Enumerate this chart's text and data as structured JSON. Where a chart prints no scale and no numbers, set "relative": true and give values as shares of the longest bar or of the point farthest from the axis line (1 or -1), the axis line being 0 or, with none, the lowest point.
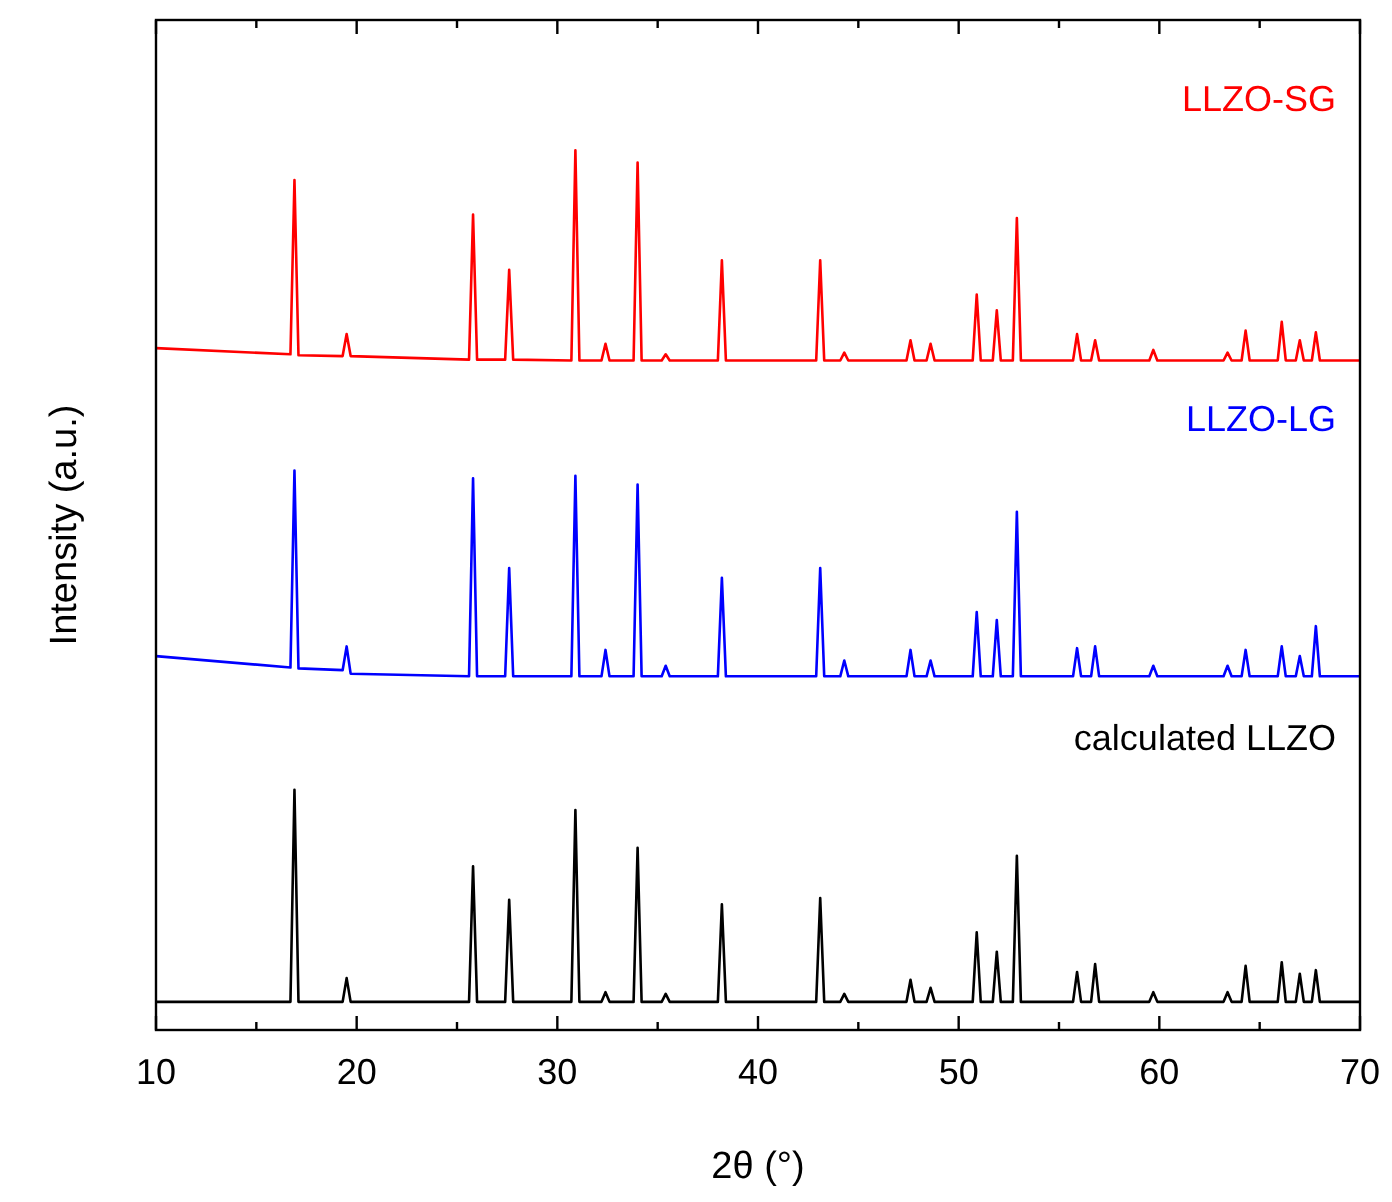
{
  "chart_data": {
    "type": "line",
    "relative": true,
    "xlabel": "2θ (°)",
    "ylabel": "Intensity (a.u.)",
    "xlim": [
      10,
      70
    ],
    "xticks": [
      10,
      {
        "value": 15,
        "label": null
      },
      20,
      {
        "value": 25,
        "label": null
      },
      30,
      {
        "value": 35,
        "label": null
      },
      40,
      {
        "value": 45,
        "label": null
      },
      50,
      {
        "value": 55,
        "label": null
      },
      60,
      {
        "value": 65,
        "label": null
      },
      70
    ],
    "tick_labels": "x",
    "grid": false,
    "marker": "none",
    "line_style": "solid",
    "x": [
      10,
      16.7,
      16.9,
      17.1,
      19.3,
      19.5,
      19.7,
      25.6,
      25.8,
      26.0,
      27.4,
      27.6,
      27.8,
      30.7,
      30.9,
      31.1,
      32.2,
      32.4,
      32.6,
      33.8,
      34.0,
      34.2,
      35.2,
      35.4,
      35.6,
      38.0,
      38.2,
      38.4,
      42.9,
      43.1,
      43.3,
      44.1,
      44.3,
      44.5,
      47.4,
      47.6,
      47.8,
      48.4,
      48.6,
      48.8,
      50.7,
      50.9,
      51.1,
      51.7,
      51.9,
      52.1,
      52.7,
      52.9,
      53.1,
      55.7,
      55.9,
      56.1,
      56.6,
      56.8,
      57.0,
      59.5,
      59.7,
      59.9,
      63.2,
      63.4,
      63.6,
      64.1,
      64.3,
      64.5,
      65.9,
      66.1,
      66.3,
      66.8,
      67.0,
      67.2,
      67.6,
      67.8,
      68.0,
      70
    ],
    "series": [
      {
        "name": "LLZO-SG",
        "color": "#ff0000",
        "values": [
          0.775,
          0.768,
          0.966,
          0.767,
          0.766,
          0.791,
          0.766,
          0.762,
          0.927,
          0.762,
          0.762,
          0.864,
          0.762,
          0.761,
          1.0,
          0.761,
          0.761,
          0.78,
          0.761,
          0.761,
          0.986,
          0.761,
          0.761,
          0.768,
          0.761,
          0.761,
          0.875,
          0.761,
          0.761,
          0.875,
          0.761,
          0.761,
          0.77,
          0.761,
          0.761,
          0.784,
          0.761,
          0.761,
          0.78,
          0.761,
          0.761,
          0.836,
          0.761,
          0.761,
          0.818,
          0.761,
          0.761,
          0.923,
          0.761,
          0.761,
          0.791,
          0.761,
          0.761,
          0.784,
          0.761,
          0.761,
          0.773,
          0.761,
          0.761,
          0.77,
          0.761,
          0.761,
          0.795,
          0.761,
          0.761,
          0.805,
          0.761,
          0.761,
          0.784,
          0.761,
          0.761,
          0.793,
          0.761,
          0.761
        ]
      },
      {
        "name": "LLZO-LG",
        "color": "#0000ff",
        "values": [
          0.425,
          0.412,
          0.636,
          0.411,
          0.409,
          0.436,
          0.405,
          0.402,
          0.627,
          0.402,
          0.402,
          0.525,
          0.402,
          0.402,
          0.63,
          0.402,
          0.402,
          0.432,
          0.402,
          0.402,
          0.62,
          0.402,
          0.402,
          0.414,
          0.402,
          0.402,
          0.514,
          0.402,
          0.402,
          0.525,
          0.402,
          0.402,
          0.42,
          0.402,
          0.402,
          0.432,
          0.402,
          0.402,
          0.42,
          0.402,
          0.402,
          0.475,
          0.402,
          0.402,
          0.466,
          0.402,
          0.402,
          0.589,
          0.402,
          0.402,
          0.434,
          0.402,
          0.402,
          0.436,
          0.402,
          0.402,
          0.414,
          0.402,
          0.402,
          0.414,
          0.402,
          0.402,
          0.432,
          0.402,
          0.402,
          0.436,
          0.402,
          0.402,
          0.425,
          0.402,
          0.402,
          0.459,
          0.402,
          0.402
        ]
      },
      {
        "name": "calculated LLZO",
        "color": "#000000",
        "values": [
          0.032,
          0.032,
          0.273,
          0.032,
          0.032,
          0.059,
          0.032,
          0.032,
          0.186,
          0.032,
          0.032,
          0.148,
          0.032,
          0.032,
          0.25,
          0.032,
          0.032,
          0.043,
          0.032,
          0.032,
          0.207,
          0.032,
          0.032,
          0.041,
          0.032,
          0.032,
          0.143,
          0.032,
          0.032,
          0.15,
          0.032,
          0.032,
          0.041,
          0.032,
          0.032,
          0.057,
          0.032,
          0.032,
          0.048,
          0.032,
          0.032,
          0.111,
          0.032,
          0.032,
          0.089,
          0.032,
          0.032,
          0.198,
          0.032,
          0.032,
          0.066,
          0.032,
          0.032,
          0.075,
          0.032,
          0.032,
          0.043,
          0.032,
          0.032,
          0.043,
          0.032,
          0.032,
          0.073,
          0.032,
          0.032,
          0.077,
          0.032,
          0.032,
          0.064,
          0.032,
          0.032,
          0.068,
          0.032,
          0.032
        ]
      }
    ]
  }
}
